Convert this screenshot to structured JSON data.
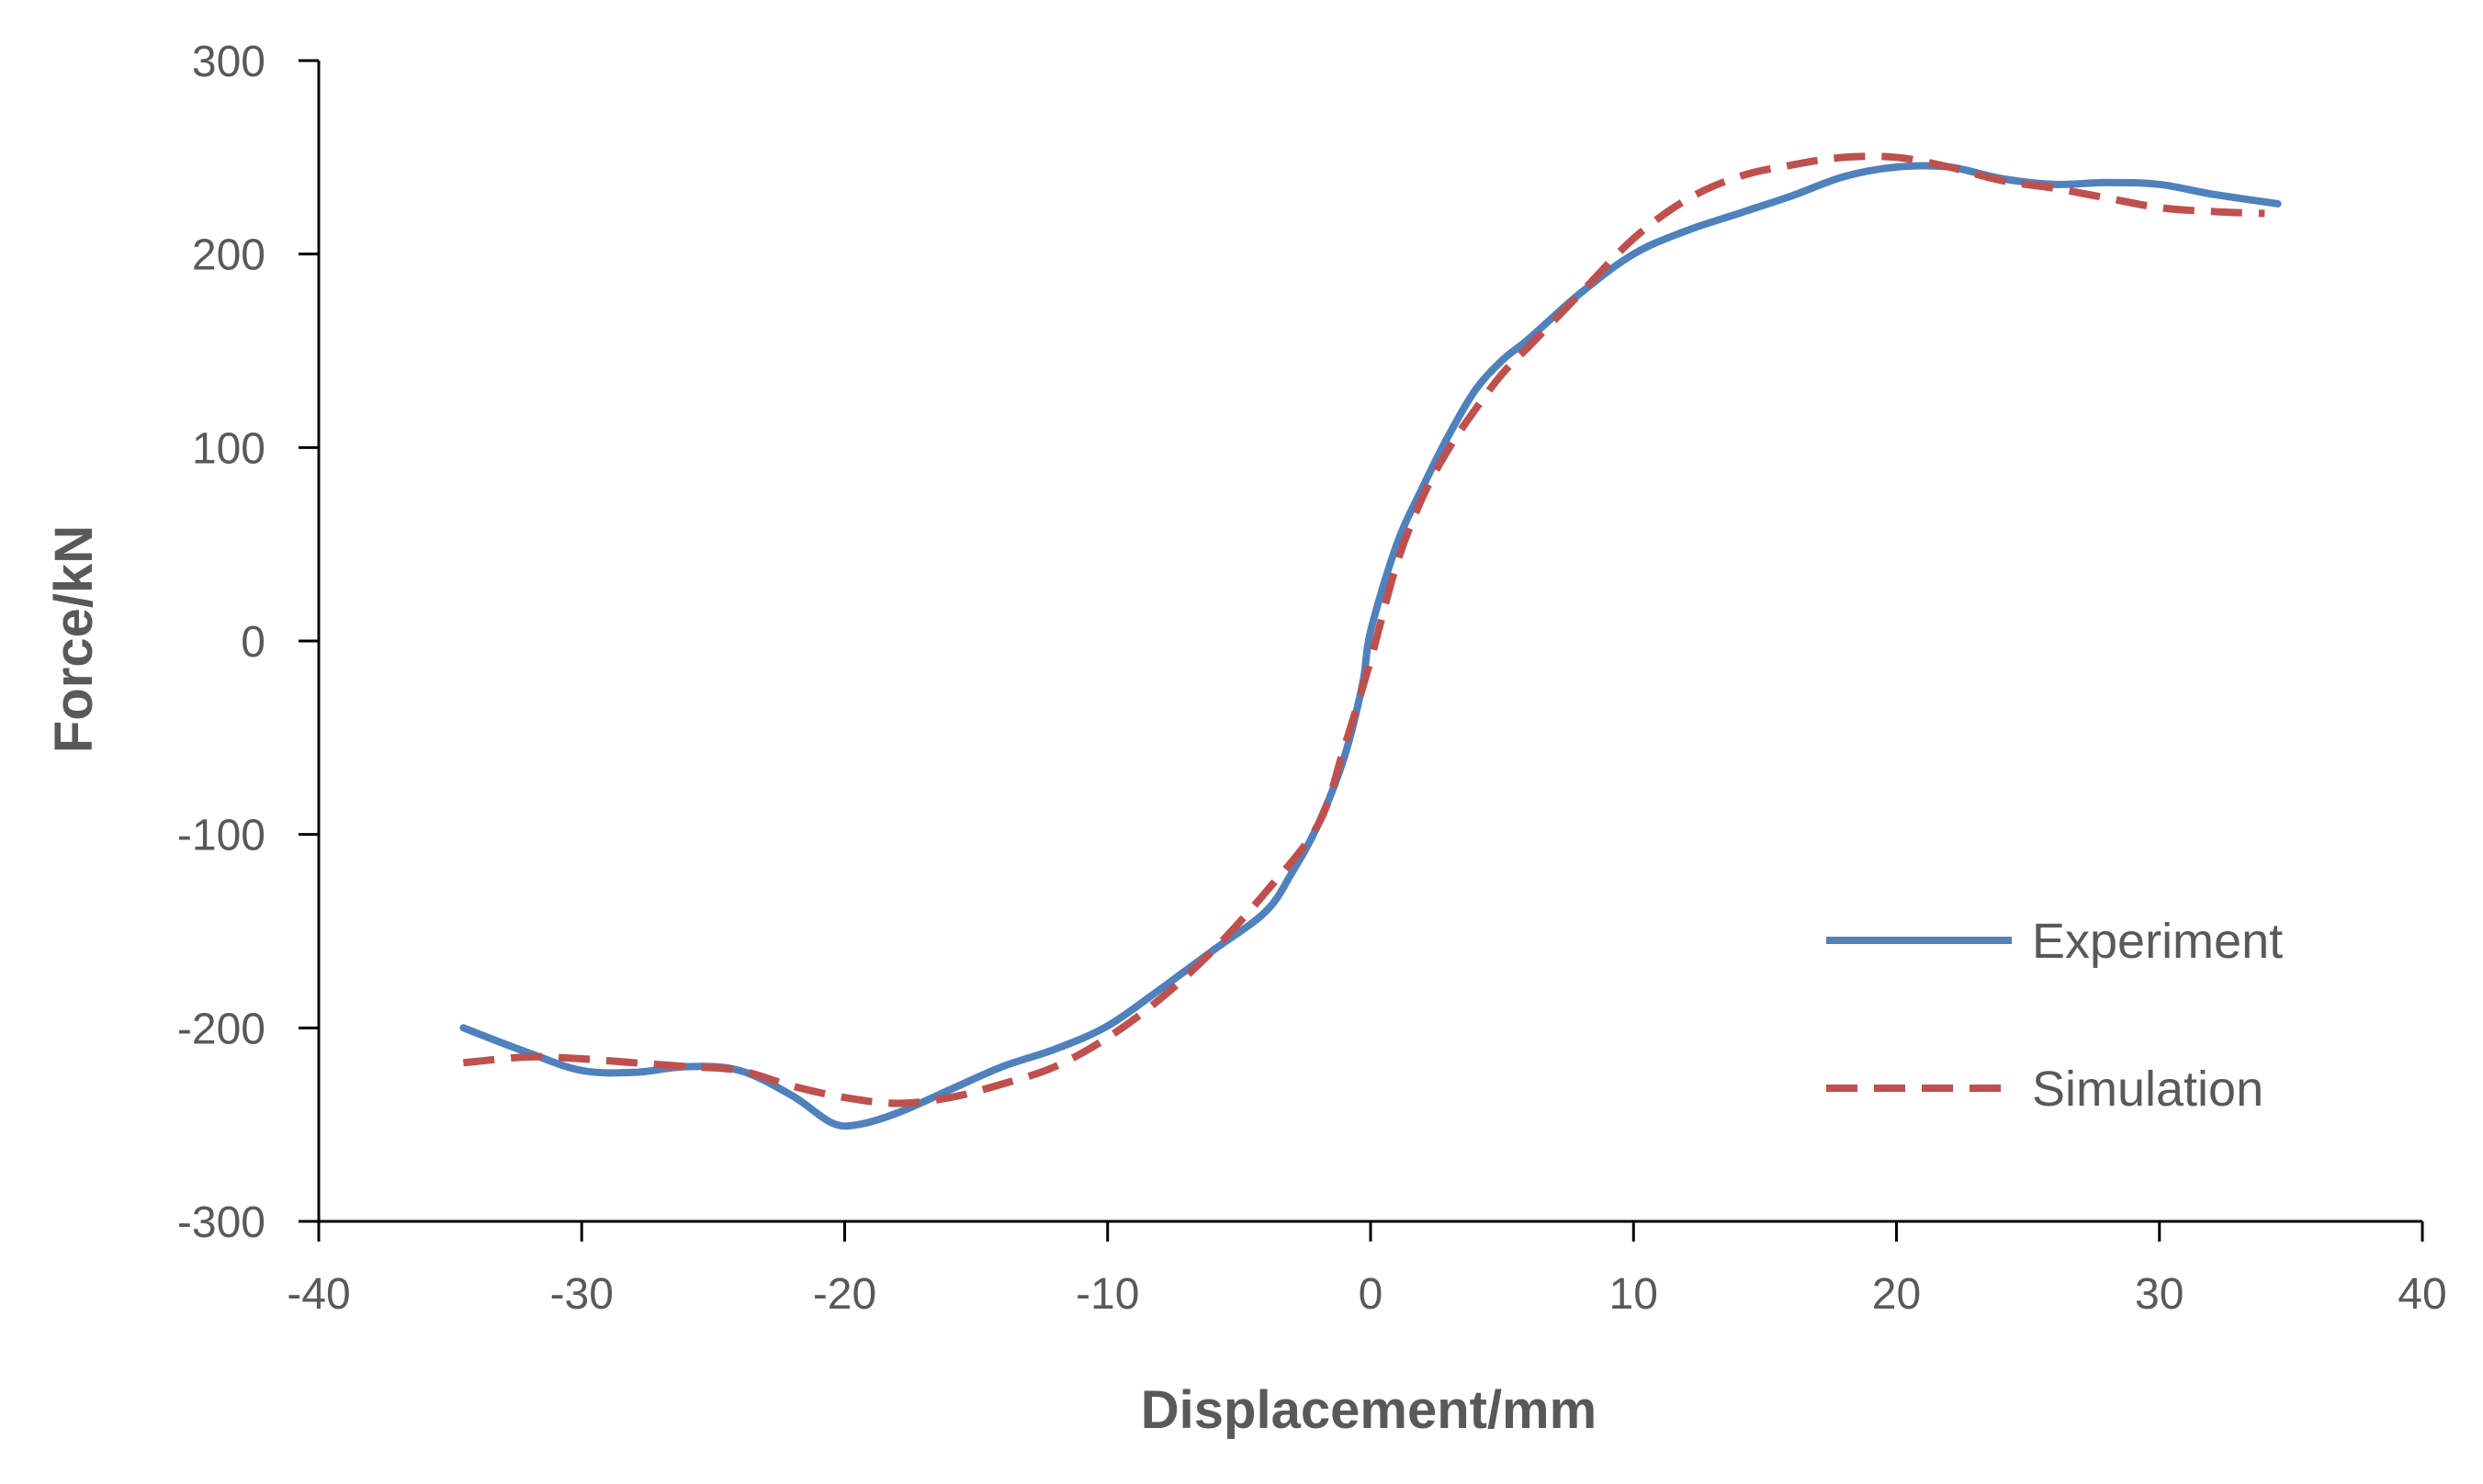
{
  "chart_data": {
    "type": "line",
    "title": "",
    "xlabel": "Displacement/mm",
    "ylabel": "Force/kN",
    "xlim": [
      -40,
      40
    ],
    "ylim": [
      -300,
      300
    ],
    "x_ticks": [
      -40,
      -30,
      -20,
      -10,
      0,
      10,
      20,
      30,
      40
    ],
    "y_ticks": [
      -300,
      -200,
      -100,
      0,
      100,
      200,
      300
    ],
    "grid": false,
    "legend": "bottom-right",
    "series": [
      {
        "name": "Experiment",
        "style": "solid",
        "color": "#4f81bd",
        "x": [
          -34.5,
          -32,
          -30,
          -28,
          -26,
          -24,
          -22,
          -20.5,
          -19.5,
          -18,
          -16,
          -14,
          -12,
          -10,
          -8,
          -6,
          -4,
          -3,
          -2,
          -1,
          -0.3,
          0,
          1,
          2,
          3,
          4,
          5,
          6,
          8,
          10,
          12,
          14,
          16,
          18,
          20,
          22,
          24,
          26,
          28,
          30,
          32,
          34.5
        ],
        "y": [
          -200,
          -213,
          -222,
          -223,
          -220,
          -222,
          -235,
          -249,
          -250,
          -244,
          -232,
          -220,
          -211,
          -199,
          -180,
          -160,
          -140,
          -120,
          -95,
          -60,
          -22,
          5,
          50,
          80,
          107,
          130,
          145,
          156,
          180,
          200,
          212,
          221,
          230,
          240,
          245,
          245,
          239,
          236,
          237,
          236,
          231,
          226
        ]
      },
      {
        "name": "Simulation",
        "style": "dashed",
        "color": "#c0504d",
        "x": [
          -34.5,
          -32,
          -30,
          -28,
          -26,
          -24,
          -22,
          -20,
          -18,
          -16,
          -14,
          -12,
          -10,
          -8,
          -6,
          -4,
          -2,
          -1,
          0,
          1,
          2,
          3,
          4,
          5,
          6,
          8,
          10,
          12,
          14,
          16,
          18,
          20,
          22,
          24,
          26,
          28,
          30,
          32,
          34
        ],
        "y": [
          -218,
          -215,
          -216,
          -218,
          -220,
          -222,
          -230,
          -236,
          -239,
          -236,
          -229,
          -220,
          -205,
          -185,
          -160,
          -130,
          -95,
          -55,
          -10,
          40,
          75,
          100,
          120,
          138,
          152,
          180,
          208,
          228,
          240,
          246,
          250,
          250,
          245,
          238,
          234,
          229,
          224,
          222,
          221
        ]
      }
    ]
  }
}
